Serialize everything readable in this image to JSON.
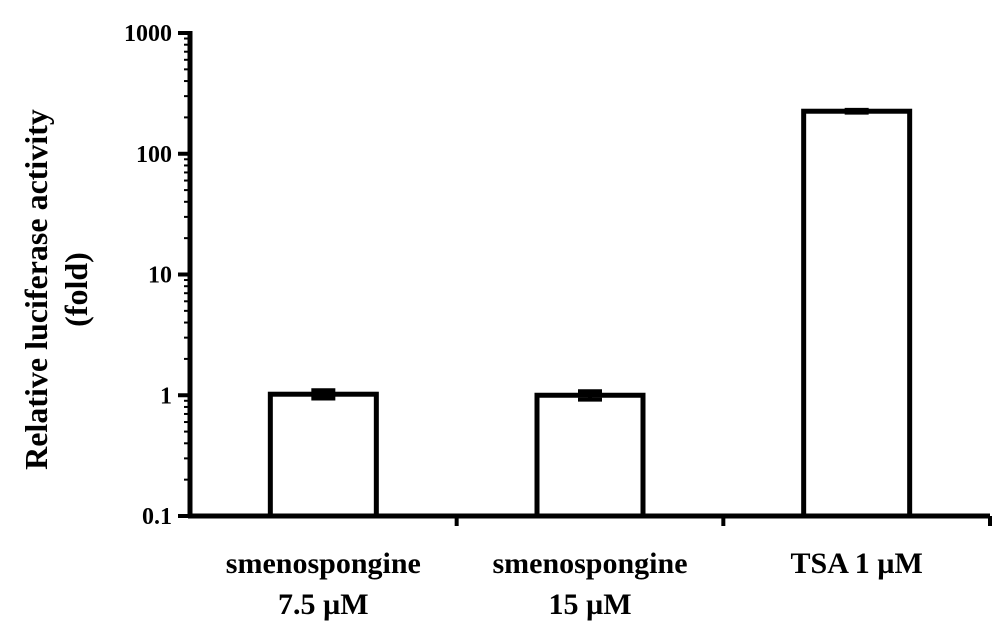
{
  "chart_data": {
    "type": "bar",
    "title": "",
    "xlabel": "",
    "ylabel": [
      "Relative luciferase activity",
      "(fold)"
    ],
    "yscale": "log",
    "ylim": [
      0.1,
      1000
    ],
    "yticks": [
      0.1,
      1,
      10,
      100,
      1000
    ],
    "ytick_labels": [
      "0.1",
      "1",
      "10",
      "100",
      "1000"
    ],
    "categories": [
      [
        "smenospongine",
        "7.5 µM"
      ],
      [
        "smenospongine",
        "15 µM"
      ],
      [
        "TSA 1 µM"
      ]
    ],
    "values": [
      1.02,
      1.0,
      225
    ],
    "errors": [
      0.08,
      0.08,
      6
    ],
    "bar_fill": "#ffffff",
    "bar_stroke": "#000000",
    "grid": false,
    "legend": "none"
  }
}
